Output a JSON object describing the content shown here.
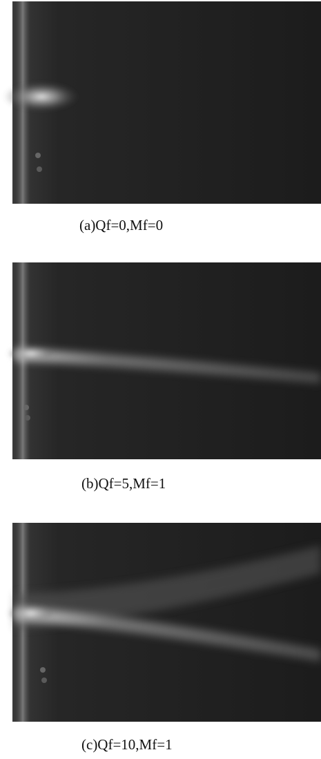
{
  "panels": [
    {
      "caption": "(a)Qf=0,Mf=0"
    },
    {
      "caption": "(b)Qf=5,Mf=1"
    },
    {
      "caption": "(c)Qf=10,Mf=1"
    }
  ]
}
